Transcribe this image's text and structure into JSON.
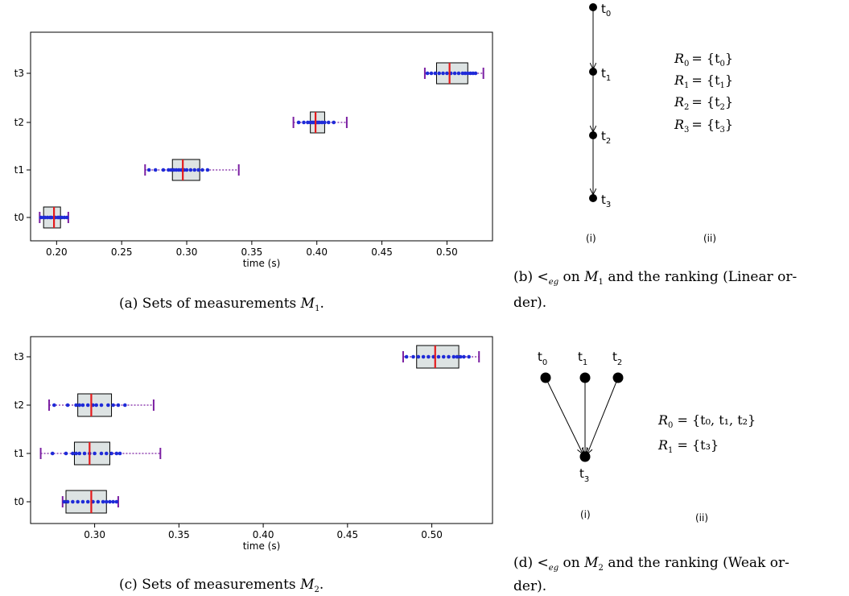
{
  "chart_data": [
    {
      "type": "box",
      "id": "a",
      "xlabel": "time (s)",
      "xticks": [
        "0.20",
        "0.25",
        "0.30",
        "0.35",
        "0.40",
        "0.45",
        "0.50"
      ],
      "xlim": [
        0.18,
        0.535
      ],
      "categories": [
        "t0",
        "t1",
        "t2",
        "t3"
      ],
      "boxes": [
        {
          "name": "t0",
          "whisker_low": 0.187,
          "q1": 0.19,
          "median": 0.198,
          "q3": 0.203,
          "whisker_high": 0.209,
          "points": [
            0.188,
            0.19,
            0.191,
            0.193,
            0.195,
            0.196,
            0.198,
            0.199,
            0.201,
            0.202,
            0.204,
            0.206,
            0.208
          ]
        },
        {
          "name": "t1",
          "whisker_low": 0.268,
          "q1": 0.289,
          "median": 0.297,
          "q3": 0.31,
          "whisker_high": 0.34,
          "points": [
            0.271,
            0.276,
            0.282,
            0.286,
            0.288,
            0.29,
            0.292,
            0.294,
            0.296,
            0.298,
            0.3,
            0.303,
            0.306,
            0.309,
            0.312,
            0.316
          ]
        },
        {
          "name": "t2",
          "whisker_low": 0.382,
          "q1": 0.395,
          "median": 0.399,
          "q3": 0.406,
          "whisker_high": 0.423,
          "points": [
            0.386,
            0.39,
            0.393,
            0.395,
            0.396,
            0.397,
            0.398,
            0.399,
            0.4,
            0.401,
            0.402,
            0.404,
            0.406,
            0.409,
            0.413
          ]
        },
        {
          "name": "t3",
          "whisker_low": 0.483,
          "q1": 0.492,
          "median": 0.502,
          "q3": 0.516,
          "whisker_high": 0.528,
          "points": [
            0.485,
            0.488,
            0.491,
            0.494,
            0.497,
            0.5,
            0.503,
            0.506,
            0.509,
            0.512,
            0.514,
            0.516,
            0.518,
            0.52,
            0.522
          ]
        }
      ]
    },
    {
      "type": "box",
      "id": "c",
      "xlabel": "time (s)",
      "xticks": [
        "0.30",
        "0.35",
        "0.40",
        "0.45",
        "0.50"
      ],
      "xlim": [
        0.262,
        0.536
      ],
      "categories": [
        "t0",
        "t1",
        "t2",
        "t3"
      ],
      "boxes": [
        {
          "name": "t0",
          "whisker_low": 0.281,
          "q1": 0.283,
          "median": 0.298,
          "q3": 0.307,
          "whisker_high": 0.314,
          "points": [
            0.282,
            0.284,
            0.287,
            0.29,
            0.293,
            0.296,
            0.299,
            0.302,
            0.305,
            0.307,
            0.309,
            0.311,
            0.313
          ]
        },
        {
          "name": "t1",
          "whisker_low": 0.268,
          "q1": 0.288,
          "median": 0.297,
          "q3": 0.309,
          "whisker_high": 0.339,
          "points": [
            0.275,
            0.283,
            0.287,
            0.289,
            0.291,
            0.294,
            0.297,
            0.3,
            0.304,
            0.307,
            0.31,
            0.313,
            0.315
          ]
        },
        {
          "name": "t2",
          "whisker_low": 0.273,
          "q1": 0.29,
          "median": 0.298,
          "q3": 0.31,
          "whisker_high": 0.335,
          "points": [
            0.276,
            0.284,
            0.289,
            0.291,
            0.293,
            0.296,
            0.299,
            0.301,
            0.304,
            0.308,
            0.311,
            0.314,
            0.318
          ]
        },
        {
          "name": "t3",
          "whisker_low": 0.483,
          "q1": 0.491,
          "median": 0.502,
          "q3": 0.516,
          "whisker_high": 0.528,
          "points": [
            0.485,
            0.489,
            0.492,
            0.495,
            0.498,
            0.501,
            0.504,
            0.507,
            0.51,
            0.513,
            0.515,
            0.517,
            0.519,
            0.522
          ]
        }
      ]
    }
  ],
  "captions": {
    "a": "(a) Sets of measurements ",
    "b_line1": "(b) <",
    "b_line1_rest": " on ",
    "b_line1_tail": " and the ranking (Linear or-",
    "b_line2": "der).",
    "c": "(c) Sets of measurements ",
    "d_line1": "(d) <",
    "d_line1_rest": " on ",
    "d_line1_tail": " and the ranking (Weak or-",
    "d_line2": "der).",
    "eg_sub": "eg",
    "m_symbol": "M",
    "m1_sub": "1",
    "m2_sub": "2",
    "period": "."
  },
  "diagram_b": {
    "nodes": [
      {
        "base": "t",
        "sub": "0"
      },
      {
        "base": "t",
        "sub": "1"
      },
      {
        "base": "t",
        "sub": "2"
      },
      {
        "base": "t",
        "sub": "3"
      }
    ],
    "label_i": "(i)",
    "label_ii": "(ii)",
    "rankings": [
      {
        "lhs": "R",
        "lhs_sub": "0",
        "rhs": "= {t",
        "rhs_sub": "0",
        "rhs_end": "}"
      },
      {
        "lhs": "R",
        "lhs_sub": "1",
        "rhs": "= {t",
        "rhs_sub": "1",
        "rhs_end": "}"
      },
      {
        "lhs": "R",
        "lhs_sub": "2",
        "rhs": "= {t",
        "rhs_sub": "2",
        "rhs_end": "}"
      },
      {
        "lhs": "R",
        "lhs_sub": "3",
        "rhs": "= {t",
        "rhs_sub": "3",
        "rhs_end": "}"
      }
    ]
  },
  "diagram_d": {
    "top_nodes": [
      {
        "base": "t",
        "sub": "0"
      },
      {
        "base": "t",
        "sub": "1"
      },
      {
        "base": "t",
        "sub": "2"
      }
    ],
    "bottom_node": {
      "base": "t",
      "sub": "3"
    },
    "label_i": "(i)",
    "label_ii": "(ii)",
    "rankings": [
      {
        "text": "R",
        "sub": "0",
        "rest": " = {t₀, t₁, t₂}"
      },
      {
        "text": "R",
        "sub": "1",
        "rest": " = {t₃}"
      }
    ]
  }
}
